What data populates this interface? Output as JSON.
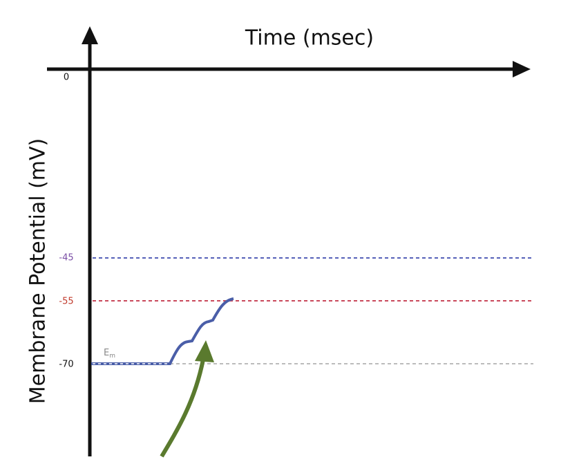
{
  "axes": {
    "x_label": "Time (msec)",
    "y_label": "Membrane Potential  (mV)"
  },
  "levels": [
    "0",
    "-45",
    "-55",
    "-70"
  ],
  "resting_label": {
    "main": "E",
    "sub": "m"
  }
}
